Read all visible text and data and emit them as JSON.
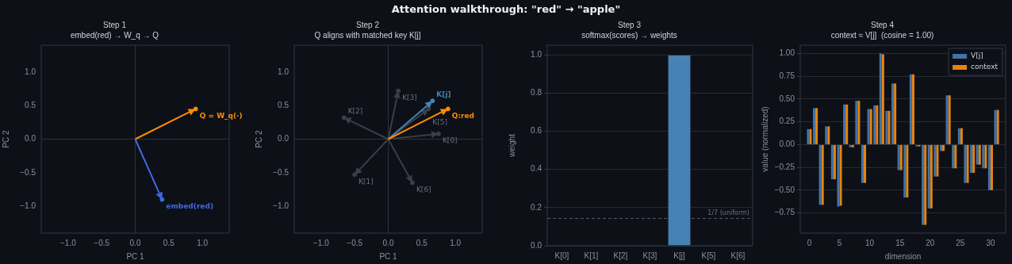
{
  "chart_data": [
    {
      "type": "scatter",
      "title": "Step 1",
      "subtitle": "embed(red) → W_q → Q",
      "xlabel": "PC 1",
      "ylabel": "PC 2",
      "xlim": [
        -1.4,
        1.4
      ],
      "ylim": [
        -1.4,
        1.4
      ],
      "xticks": [
        {
          "value": -1,
          "label": "−1.0"
        },
        {
          "value": -0.5,
          "label": "−0.5"
        },
        {
          "value": 0,
          "label": "0.0"
        },
        {
          "value": 0.5,
          "label": "0.5"
        },
        {
          "value": 1,
          "label": "1.0"
        }
      ],
      "yticks": [
        {
          "value": -1,
          "label": "−1.0"
        },
        {
          "value": -0.5,
          "label": "−0.5"
        },
        {
          "value": 0,
          "label": "0.0"
        },
        {
          "value": 0.5,
          "label": "0.5"
        },
        {
          "value": 1,
          "label": "1.0"
        }
      ],
      "grid": false,
      "marker": "circle",
      "ref_lines": [
        {
          "axis": "x",
          "value": 0,
          "color": "#2c313a"
        },
        {
          "axis": "y",
          "value": 0,
          "color": "#2c313a"
        }
      ],
      "annotations": [
        "Attention walkthrough: \"red\" → \"apple\"",
        {
          "text": "Q = W_q(·)",
          "x": 0.9,
          "y": 0.45
        },
        {
          "text": "embed(red)",
          "x": 0.4,
          "y": -0.9
        }
      ],
      "series": [
        {
          "color": "#ff8c00",
          "x": [
            0.9
          ],
          "values": [
            0.45
          ]
        },
        {
          "color": "#4169e1",
          "x": [
            0.4
          ],
          "values": [
            -0.9
          ]
        }
      ]
    },
    {
      "type": "scatter",
      "title": "Step 2",
      "subtitle": "Q aligns with matched key K[j]",
      "xlabel": "PC 1",
      "ylabel": "PC 2",
      "xlim": [
        -1.4,
        1.4
      ],
      "ylim": [
        -1.4,
        1.4
      ],
      "xticks": [
        {
          "value": -1,
          "label": "−1.0"
        },
        {
          "value": -0.5,
          "label": "−0.5"
        },
        {
          "value": 0,
          "label": "0.0"
        },
        {
          "value": 0.5,
          "label": "0.5"
        },
        {
          "value": 1,
          "label": "1.0"
        }
      ],
      "yticks": [
        {
          "value": -1,
          "label": "−1.0"
        },
        {
          "value": -0.5,
          "label": "−0.5"
        },
        {
          "value": 0,
          "label": "0.0"
        },
        {
          "value": 0.5,
          "label": "0.5"
        },
        {
          "value": 1,
          "label": "1.0"
        }
      ],
      "grid": false,
      "marker": "circle",
      "ref_lines": [
        {
          "axis": "x",
          "value": 0,
          "color": "#2c313a"
        },
        {
          "axis": "y",
          "value": 0,
          "color": "#2c313a"
        }
      ],
      "annotations": [
        {
          "text": "K[0]",
          "x": 0.75,
          "y": 0.08
        },
        {
          "text": "K[1]",
          "x": -0.5,
          "y": -0.53
        },
        {
          "text": "K[2]",
          "x": -0.66,
          "y": 0.32
        },
        {
          "text": "K[3]",
          "x": 0.15,
          "y": 0.72
        },
        {
          "text": "K[5]",
          "x": 0.6,
          "y": 0.45
        },
        {
          "text": "K[6]",
          "x": 0.36,
          "y": -0.65
        },
        {
          "text": "K[j]",
          "x": 0.66,
          "y": 0.57
        },
        {
          "text": "Q:red",
          "x": 0.89,
          "y": 0.45
        }
      ],
      "series": [
        {
          "color": "#3a3e46",
          "x": [
            0.75
          ],
          "values": [
            0.08
          ]
        },
        {
          "color": "#3a3e46",
          "x": [
            -0.5
          ],
          "values": [
            -0.53
          ]
        },
        {
          "color": "#3a3e46",
          "x": [
            -0.66
          ],
          "values": [
            0.32
          ]
        },
        {
          "color": "#3a3e46",
          "x": [
            0.15
          ],
          "values": [
            0.72
          ]
        },
        {
          "color": "#3a3e46",
          "x": [
            0.6
          ],
          "values": [
            0.45
          ]
        },
        {
          "color": "#3a3e46",
          "x": [
            0.36
          ],
          "values": [
            -0.65
          ]
        },
        {
          "color": "#4682b4",
          "x": [
            0.66
          ],
          "values": [
            0.57
          ]
        },
        {
          "color": "#ff8c00",
          "x": [
            0.89
          ],
          "values": [
            0.45
          ]
        }
      ]
    },
    {
      "type": "bar",
      "title": "Step 3",
      "subtitle": "softmax(scores) → weights",
      "ylabel": "weight",
      "categories": [
        "K[0]",
        "K[1]",
        "K[2]",
        "K[3]",
        "K[j]",
        "K[5]",
        "K[6]"
      ],
      "ylim": [
        0,
        1.05
      ],
      "yticks": [
        {
          "value": 0,
          "label": "0.0"
        },
        {
          "value": 0.2,
          "label": "0.2"
        },
        {
          "value": 0.4,
          "label": "0.4"
        },
        {
          "value": 0.6,
          "label": "0.6"
        },
        {
          "value": 0.8,
          "label": "0.8"
        },
        {
          "value": 1,
          "label": "1.0"
        }
      ],
      "grid": "y",
      "ref_lines": [
        {
          "axis": "y",
          "value": 0.143,
          "label": "1/7 (uniform)",
          "color": "#555a63",
          "line_style": "dashed"
        }
      ],
      "series": [
        {
          "color": "#4682b4",
          "values": [
            0,
            0,
            0,
            0,
            1.0,
            0,
            0
          ]
        }
      ]
    },
    {
      "type": "bar",
      "title": "Step 4",
      "subtitle": "context ≈ V[j]  (cosine = 1.00)",
      "xlabel": "dimension",
      "ylabel": "value (normalized)",
      "x": [
        0,
        1,
        2,
        3,
        4,
        5,
        6,
        7,
        8,
        9,
        10,
        11,
        12,
        13,
        14,
        15,
        16,
        17,
        18,
        19,
        20,
        21,
        22,
        23,
        24,
        25,
        26,
        27,
        28,
        29,
        30,
        31
      ],
      "xlim": [
        -1.5,
        32.5
      ],
      "xticks": [
        0,
        5,
        10,
        15,
        20,
        25,
        30
      ],
      "ylim": [
        -0.97,
        1.09
      ],
      "yticks": [
        {
          "value": -0.75,
          "label": "−0.75"
        },
        {
          "value": -0.5,
          "label": "−0.50"
        },
        {
          "value": -0.25,
          "label": "−0.25"
        },
        {
          "value": 0,
          "label": "0.00"
        },
        {
          "value": 0.25,
          "label": "0.25"
        },
        {
          "value": 0.5,
          "label": "0.50"
        },
        {
          "value": 0.75,
          "label": "0.75"
        },
        {
          "value": 1,
          "label": "1.00"
        }
      ],
      "grid": "y",
      "legend": "top right",
      "series": [
        {
          "name": "V[j]",
          "color": "#3f74a8",
          "values": [
            0.17,
            0.4,
            -0.66,
            0.2,
            -0.38,
            -0.68,
            0.44,
            -0.03,
            0.48,
            -0.42,
            0.39,
            0.43,
            1.0,
            0.37,
            0.67,
            -0.28,
            -0.58,
            0.77,
            -0.02,
            -0.88,
            -0.7,
            -0.35,
            -0.07,
            0.54,
            -0.26,
            0.18,
            -0.42,
            -0.31,
            -0.22,
            -0.26,
            -0.5,
            0.38
          ]
        },
        {
          "name": "context",
          "color": "#e8820e",
          "values": [
            0.17,
            0.4,
            -0.66,
            0.2,
            -0.38,
            -0.67,
            0.44,
            -0.03,
            0.48,
            -0.42,
            0.39,
            0.43,
            0.99,
            0.37,
            0.67,
            -0.28,
            -0.58,
            0.77,
            -0.02,
            -0.88,
            -0.7,
            -0.35,
            -0.07,
            0.54,
            -0.26,
            0.18,
            -0.42,
            -0.31,
            -0.22,
            -0.26,
            -0.5,
            0.38
          ]
        }
      ]
    }
  ]
}
